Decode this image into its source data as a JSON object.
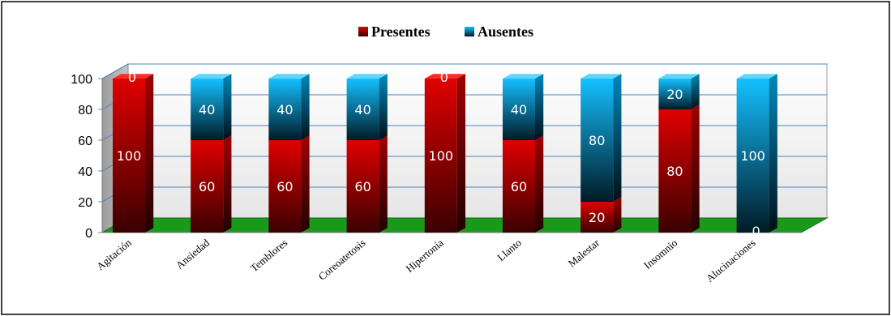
{
  "chart_data": {
    "type": "bar",
    "stacked": true,
    "three_d": true,
    "title": "",
    "xlabel": "",
    "ylabel": "",
    "ylim": [
      0,
      100
    ],
    "yticks": [
      0,
      20,
      40,
      60,
      80,
      100
    ],
    "grid": true,
    "legend_position": "top",
    "categories": [
      "Agitación",
      "Ansiedad",
      "Temblores",
      "Coreoatetosis",
      "Hipertonía",
      "Llanto",
      "Malestar",
      "Insomnio",
      "Alucinaciones"
    ],
    "series": [
      {
        "name": "Presentes",
        "color": "#c00000",
        "values": [
          100,
          60,
          60,
          60,
          100,
          60,
          20,
          80,
          0
        ]
      },
      {
        "name": "Ausentes",
        "color": "#00b0f0",
        "values": [
          0,
          40,
          40,
          40,
          0,
          40,
          80,
          20,
          100
        ]
      }
    ],
    "floor_color": "#1a9a1a",
    "wall_color": "#ececec",
    "label_color": "#ffffff"
  }
}
